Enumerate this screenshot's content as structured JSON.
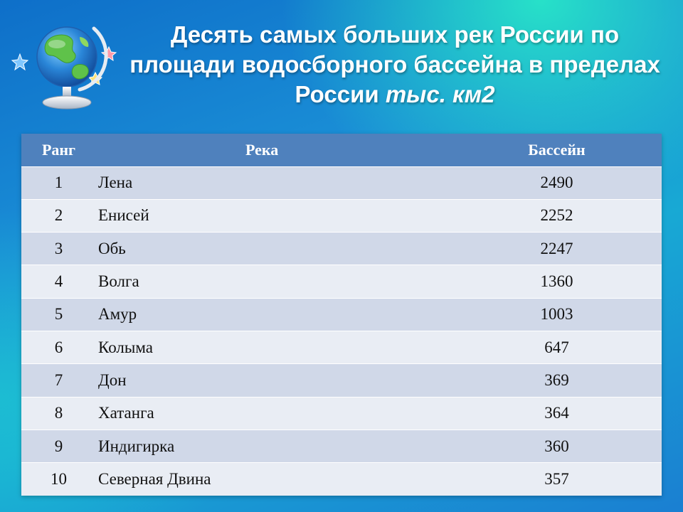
{
  "slide": {
    "title_main": "Десять самых больших рек России по площади водосборного бассейна в пределах России",
    "title_unit": "тыс. км2"
  },
  "table": {
    "headers": {
      "rank": "Ранг",
      "river": "Река",
      "basin": "Бассейн"
    },
    "rows": [
      {
        "rank": "1",
        "river": "Лена",
        "basin": "2490"
      },
      {
        "rank": "2",
        "river": "Енисей",
        "basin": "2252"
      },
      {
        "rank": "3",
        "river": "Обь",
        "basin": "2247"
      },
      {
        "rank": "4",
        "river": "Волга",
        "basin": "1360"
      },
      {
        "rank": "5",
        "river": "Амур",
        "basin": "1003"
      },
      {
        "rank": "6",
        "river": "Колыма",
        "basin": "647"
      },
      {
        "rank": "7",
        "river": "Дон",
        "basin": "369"
      },
      {
        "rank": "8",
        "river": "Хатанга",
        "basin": "364"
      },
      {
        "rank": "9",
        "river": "Индигирка",
        "basin": "360"
      },
      {
        "rank": "10",
        "river": "Северная Двина",
        "basin": "357"
      }
    ]
  },
  "icons": {
    "globe": "globe-icon",
    "stars": "star-icon"
  }
}
